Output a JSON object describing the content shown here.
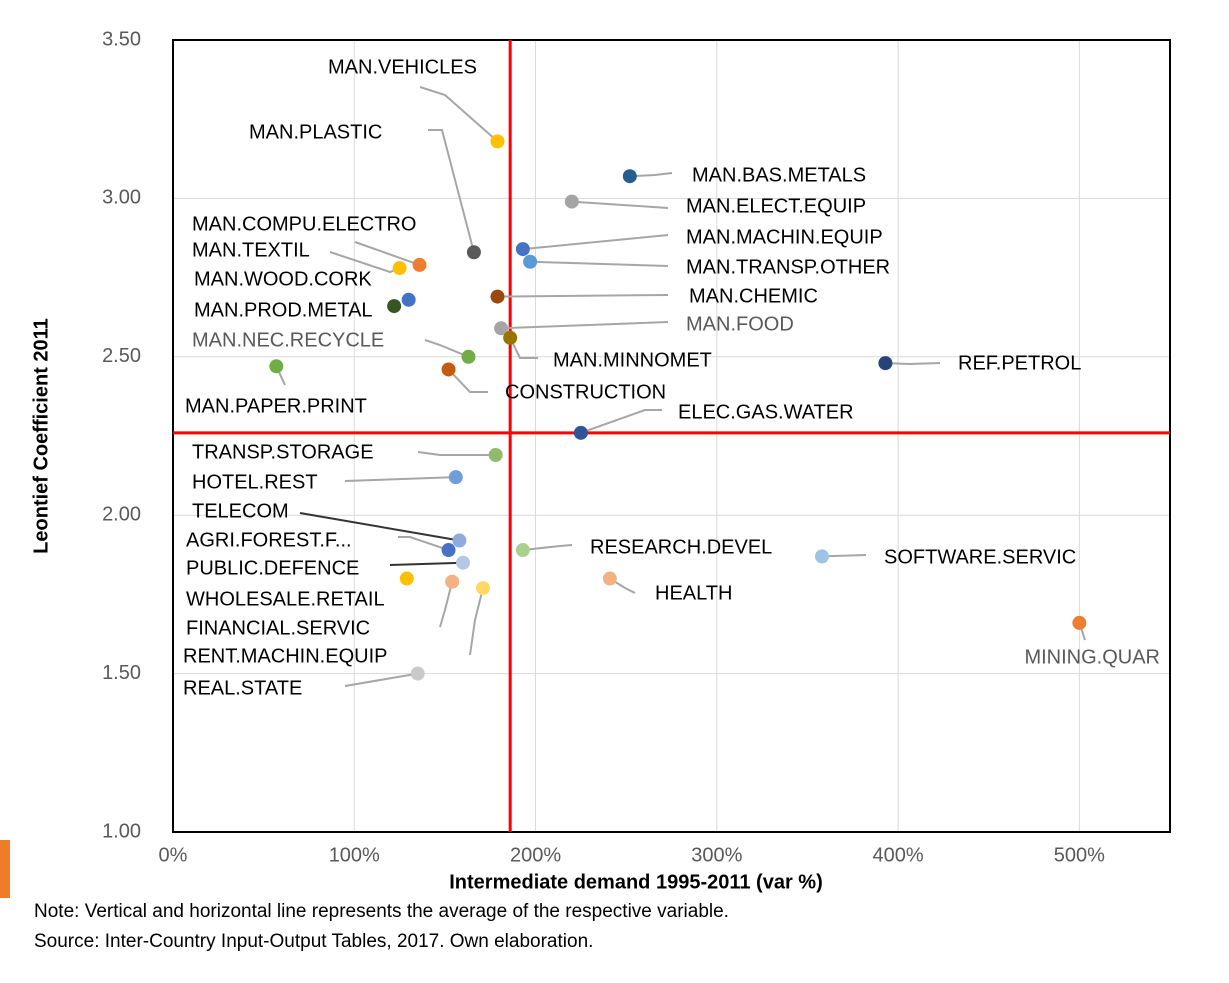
{
  "chart_data": {
    "type": "scatter",
    "xlabel": "Intermediate demand 1995-2011 (var %)",
    "ylabel": "Leontief Coefficient 2011",
    "labels": [
      "MAN.VEHICLES",
      "MAN.PLASTIC",
      "MAN.BAS.METALS",
      "MAN.ELECT.EQUIP",
      "MAN.MACHIN.EQUIP",
      "MAN.TRANSP.OTHER",
      "MAN.COMPU.ELECTRO",
      "MAN.TEXTIL",
      "MAN.WOOD.CORK",
      "MAN.PROD.METAL",
      "MAN.CHEMIC",
      "MAN.FOOD",
      "MAN.MINNOMET",
      "MAN.NEC.RECYCLE",
      "MAN.PAPER.PRINT",
      "CONSTRUCTION",
      "REF.PETROL",
      "ELEC.GAS.WATER",
      "TRANSP.STORAGE",
      "HOTEL.REST",
      "TELECOM",
      "AGRI.FOREST.F...",
      "PUBLIC.DEFENCE",
      "RESEARCH.DEVEL",
      "SOFTWARE.SERVIC",
      "HEALTH",
      "WHOLESALE.RETAIL",
      "FINANCIAL.SERVIC",
      "RENT.MACHIN.EQUIP",
      "REAL.STATE",
      "MINING.QUAR"
    ],
    "x": [
      179,
      166,
      252,
      220,
      193,
      197,
      136,
      125,
      130,
      122,
      179,
      181,
      186,
      163,
      57,
      152,
      393,
      225,
      178,
      156,
      158,
      152,
      160,
      193,
      358,
      241,
      129,
      154,
      171,
      135,
      500
    ],
    "values": [
      3.18,
      2.83,
      3.07,
      2.99,
      2.84,
      2.8,
      2.79,
      2.78,
      2.68,
      2.66,
      2.69,
      2.59,
      2.56,
      2.5,
      2.47,
      2.46,
      2.48,
      2.26,
      2.19,
      2.12,
      1.92,
      1.89,
      1.85,
      1.89,
      1.87,
      1.8,
      1.8,
      1.79,
      1.77,
      1.5,
      1.66
    ],
    "colors": [
      "#ffc000",
      "#595959",
      "#255e91",
      "#a5a5a5",
      "#4472c4",
      "#5b9bd5",
      "#ed7d31",
      "#ffc000",
      "#4472c4",
      "#375623",
      "#9e480e",
      "#a5a5a5",
      "#997300",
      "#70ad47",
      "#70ad47",
      "#c55a11",
      "#264478",
      "#2f5597",
      "#8fbc6b",
      "#6f9fd8",
      "#8faadc",
      "#4472c4",
      "#b4c7e7",
      "#a9d18e",
      "#9dc3e6",
      "#f4b183",
      "#ffc000",
      "#f4b183",
      "#ffd966",
      "#c9c9c9",
      "#ed7d31"
    ],
    "xlim": [
      0,
      550
    ],
    "xticks": [
      {
        "value": 0,
        "label": "0%"
      },
      {
        "value": 100,
        "label": "100%"
      },
      {
        "value": 200,
        "label": "200%"
      },
      {
        "value": 300,
        "label": "300%"
      },
      {
        "value": 400,
        "label": "400%"
      },
      {
        "value": 500,
        "label": "500%"
      }
    ],
    "ylim": [
      1,
      3.5
    ],
    "yticks": [
      {
        "value": 1,
        "label": "1.00"
      },
      {
        "value": 1.5,
        "label": "1.50"
      },
      {
        "value": 2,
        "label": "2.00"
      },
      {
        "value": 2.5,
        "label": "2.50"
      },
      {
        "value": 3,
        "label": "3.00"
      },
      {
        "value": 3.5,
        "label": "3.50"
      }
    ],
    "grid": true,
    "average_x": 186,
    "average_y": 2.26,
    "average_color": "#ff0000",
    "note": "Note: Vertical and horizontal line represents the average of the respective variable.",
    "source": "Source: Inter-Country Input-Output Tables, 2017. Own elaboration."
  }
}
